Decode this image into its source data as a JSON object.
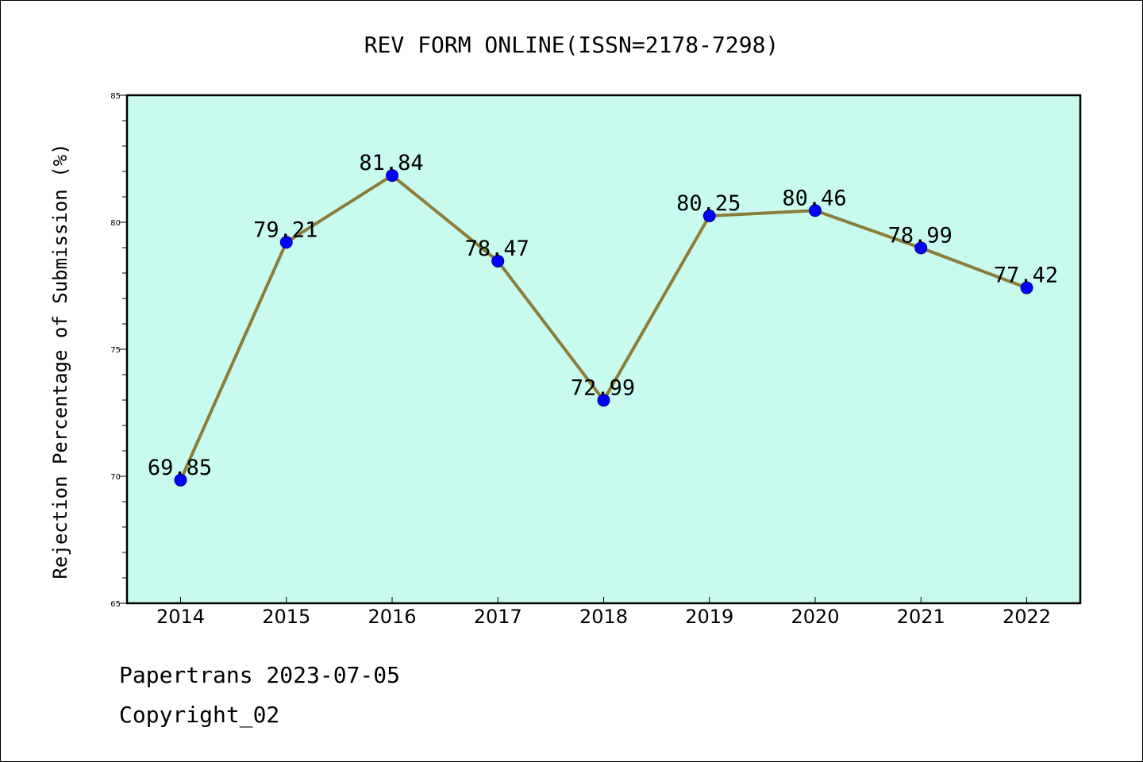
{
  "chart_data": {
    "type": "line",
    "title": "REV FORM ONLINE(ISSN=2178-7298)",
    "xlabel": "",
    "ylabel": "Rejection Percentage of Submission (%)",
    "categories": [
      "2014",
      "2015",
      "2016",
      "2017",
      "2018",
      "2019",
      "2020",
      "2021",
      "2022"
    ],
    "series": [
      {
        "values": [
          69.85,
          79.21,
          81.84,
          78.47,
          72.99,
          80.25,
          80.46,
          78.99,
          77.42
        ],
        "data_labels": [
          "69.85",
          "79.21",
          "81.84",
          "78.47",
          "72.99",
          "80.25",
          "80.46",
          "78.99",
          "77.42"
        ],
        "line_color": "#8b7d3a",
        "marker_color": "#0000ff"
      }
    ],
    "ylim": [
      65,
      85
    ],
    "yticks": [
      "65",
      "70",
      "75",
      "80",
      "85"
    ],
    "y_minor_step": 1,
    "grid": false,
    "legend": "none",
    "plot_background": "#c8fbee"
  },
  "footer": {
    "line1": "Papertrans 2023-07-05",
    "line2": "Copyright_02"
  }
}
